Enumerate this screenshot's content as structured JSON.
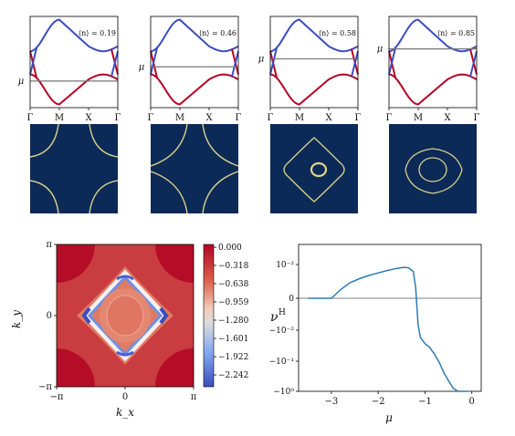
{
  "figure": {
    "band_panels": [
      {
        "label": "⟨n⟩ = 0.19",
        "mu_label": "μ",
        "mu": -0.55
      },
      {
        "label": "⟨n⟩ = 0.46",
        "mu_label": "μ",
        "mu": -0.12
      },
      {
        "label": "⟨n⟩ = 0.58",
        "mu_label": "μ",
        "mu": 0.12
      },
      {
        "label": "⟨n⟩ = 0.85",
        "mu_label": "μ",
        "mu": 0.42
      }
    ],
    "band_xticks": [
      "Γ",
      "M",
      "X",
      "Γ"
    ],
    "colors": {
      "upper_band": "#3b4cc0",
      "lower_band": "#b40426",
      "fermi_bg": "#0b2a57",
      "fermi_line": "#d8cf8a",
      "hall_line": "#2c7bb6",
      "zero_line": "#555555"
    }
  },
  "chart_data": [
    {
      "type": "line",
      "description": "band structure panels",
      "x_ticks": [
        "Γ",
        "M",
        "X",
        "Γ"
      ],
      "series": [
        {
          "name": "",
          "values": []
        }
      ]
    },
    {
      "type": "heatmap",
      "xlabel": "k_x",
      "ylabel": "k_y",
      "x_ticks": [
        "−π",
        "0",
        "π"
      ],
      "y_ticks": [
        "−π",
        "0",
        "π"
      ],
      "colorbar": {
        "ticks": [
          "0.000",
          "−0.318",
          "−0.638",
          "−0.959",
          "−1.280",
          "−1.601",
          "−1.922",
          "−2.242"
        ],
        "range": [
          -2.45,
          0.05
        ]
      }
    },
    {
      "type": "line",
      "xlabel": "μ",
      "ylabel": "ν",
      "ylabel_sup": "H",
      "x_ticks": [
        "−3",
        "−2",
        "−1",
        "0"
      ],
      "xlim": [
        -3.7,
        0.2
      ],
      "y_ticks": [
        "10⁻²",
        "0",
        "−10⁻²",
        "−10⁻¹",
        "−10⁰"
      ],
      "y_scale": "symlog",
      "series": [
        {
          "name": "",
          "x": [
            -3.5,
            -3.2,
            -3.0,
            -2.8,
            -2.6,
            -2.4,
            -2.2,
            -2.0,
            -1.8,
            -1.6,
            -1.45,
            -1.35,
            -1.25,
            -1.2,
            -1.15,
            -1.1,
            -1.0,
            -0.9,
            -0.8,
            -0.7,
            -0.6,
            -0.5,
            -0.4,
            -0.3,
            -0.2,
            -0.15,
            -0.1
          ],
          "y": [
            0,
            0,
            0,
            0.0008,
            0.0016,
            0.0024,
            0.0033,
            0.0043,
            0.0055,
            0.0068,
            0.0075,
            0.0072,
            0.005,
            0.001,
            -0.003,
            -0.008,
            -0.013,
            -0.017,
            -0.028,
            -0.05,
            -0.11,
            -0.2,
            -0.35,
            -0.55,
            -0.85,
            -1.0,
            -1.0
          ]
        }
      ]
    }
  ]
}
